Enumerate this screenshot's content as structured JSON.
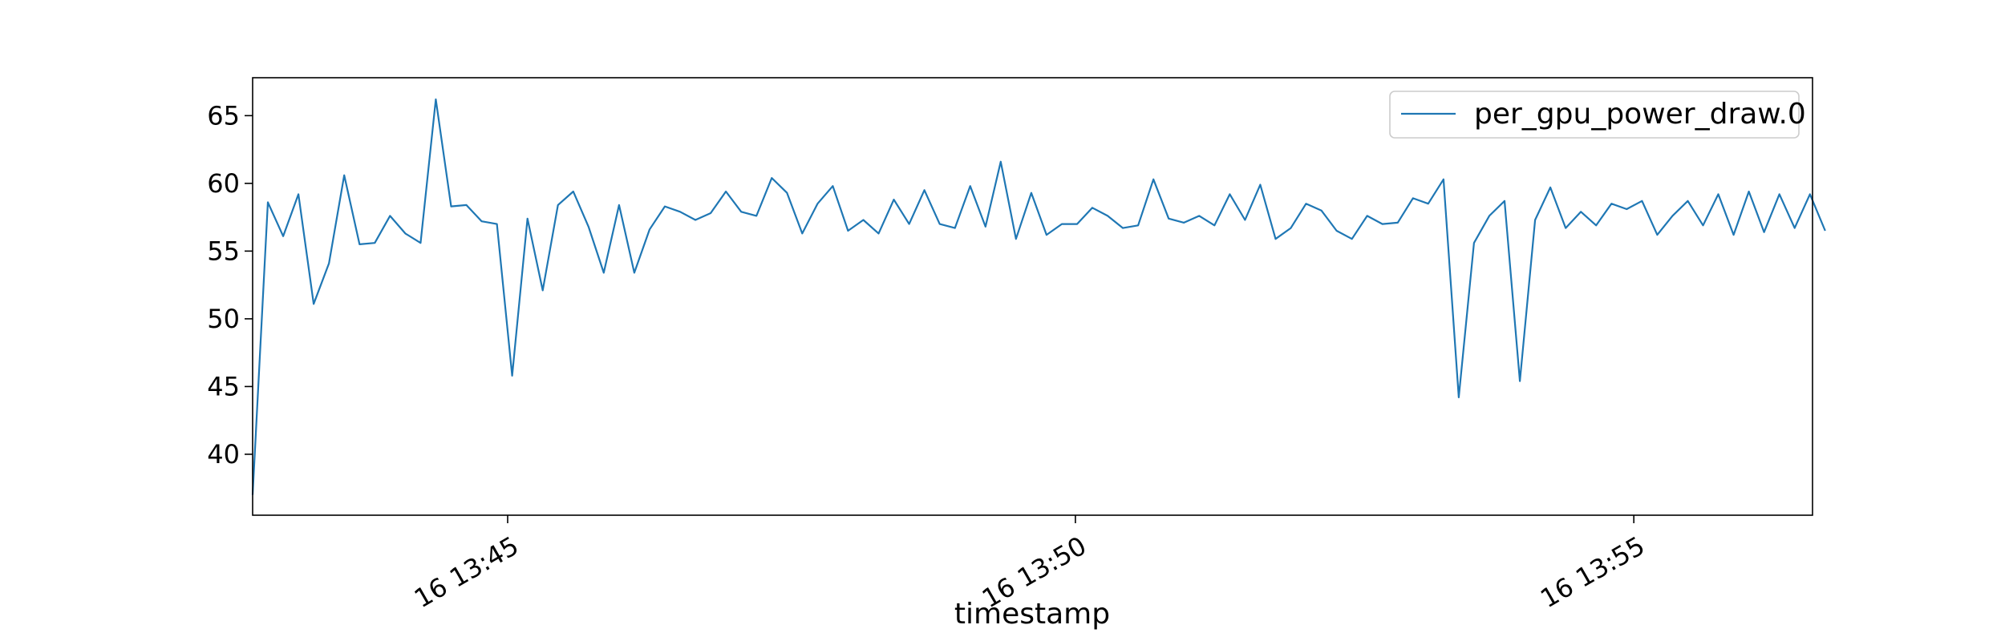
{
  "chart_data": {
    "type": "line",
    "title": "",
    "xlabel": "timestamp",
    "ylabel": "",
    "x_ticks": [
      {
        "value": 44.9167,
        "label": "16 13:45"
      },
      {
        "value": 50.0,
        "label": "16 13:50"
      },
      {
        "value": 55.0,
        "label": "16 13:55"
      }
    ],
    "y_ticks": [
      40,
      45,
      50,
      55,
      60,
      65
    ],
    "xlim": [
      42.6333,
      56.6
    ],
    "ylim": [
      35.5,
      67.8
    ],
    "grid": false,
    "legend_position": "top-right",
    "series": [
      {
        "name": "per_gpu_power_draw.0",
        "color": "#1f77b4",
        "start_minute": 42.6333,
        "step_minutes": 0.1367,
        "values": [
          37.0,
          58.6,
          56.1,
          59.2,
          51.1,
          54.1,
          60.6,
          55.5,
          55.6,
          57.6,
          56.3,
          55.6,
          66.2,
          58.3,
          58.4,
          57.2,
          57.0,
          45.8,
          57.4,
          52.1,
          58.4,
          59.4,
          56.8,
          53.4,
          58.4,
          53.4,
          56.6,
          58.3,
          57.9,
          57.3,
          57.8,
          59.4,
          57.9,
          57.6,
          60.4,
          59.3,
          56.3,
          58.5,
          59.8,
          56.5,
          57.3,
          56.3,
          58.8,
          57.0,
          59.5,
          57.0,
          56.7,
          59.8,
          56.8,
          61.6,
          55.9,
          59.3,
          56.2,
          57.0,
          57.0,
          58.2,
          57.6,
          56.7,
          56.9,
          60.3,
          57.4,
          57.1,
          57.6,
          56.9,
          59.2,
          57.3,
          59.9,
          55.9,
          56.7,
          58.5,
          58.0,
          56.5,
          55.9,
          57.6,
          57.0,
          57.1,
          58.9,
          58.5,
          60.3,
          44.2,
          55.6,
          57.6,
          58.7,
          45.4,
          57.3,
          59.7,
          56.7,
          57.9,
          56.9,
          58.5,
          58.1,
          58.7,
          56.2,
          57.6,
          58.7,
          56.9,
          59.2,
          56.2,
          59.4,
          56.4,
          59.2,
          56.7,
          59.2,
          56.5
        ]
      }
    ]
  }
}
